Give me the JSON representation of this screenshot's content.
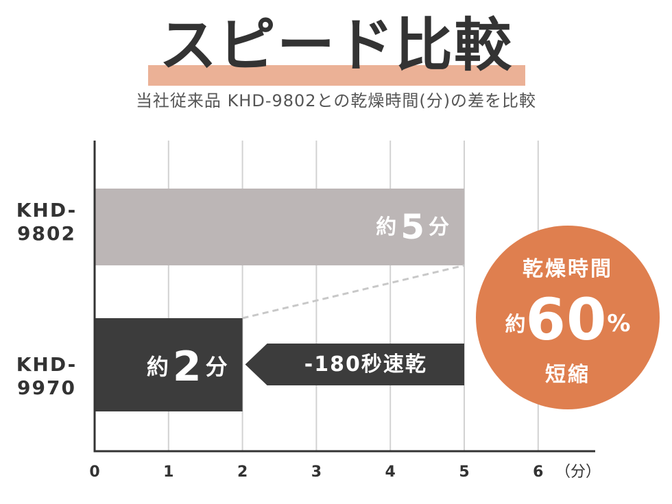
{
  "header": {
    "title": "スピード比較",
    "subtitle": "当社従来品 KHD-9802との乾燥時間(分)の差を比較"
  },
  "badge": {
    "top": "乾燥時間",
    "prefix": "約",
    "value": "60",
    "unit": "%",
    "bottom": "短縮"
  },
  "colors": {
    "bar_old": "#bcb6b6",
    "bar_new": "#3c3c3c",
    "badge": "#df7f4f",
    "title_highlight": "#ebb196",
    "grid": "#d2d2d2",
    "axis": "#333333"
  },
  "chart_data": {
    "type": "bar",
    "orientation": "horizontal",
    "categories": [
      [
        "KHD-",
        "9802"
      ],
      [
        "KHD-",
        "9970"
      ]
    ],
    "values": [
      5,
      2
    ],
    "bar_labels": [
      {
        "prefix": "約",
        "value": "5",
        "unit": "分"
      },
      {
        "prefix": "約",
        "value": "2",
        "unit": "分"
      }
    ],
    "xticks": [
      "0",
      "1",
      "2",
      "3",
      "4",
      "5",
      "6"
    ],
    "xunit": "（分）",
    "xlim": [
      0,
      6
    ],
    "grid": true,
    "annotation": {
      "text": "-180秒速乾",
      "from": 5,
      "to": 2
    }
  }
}
